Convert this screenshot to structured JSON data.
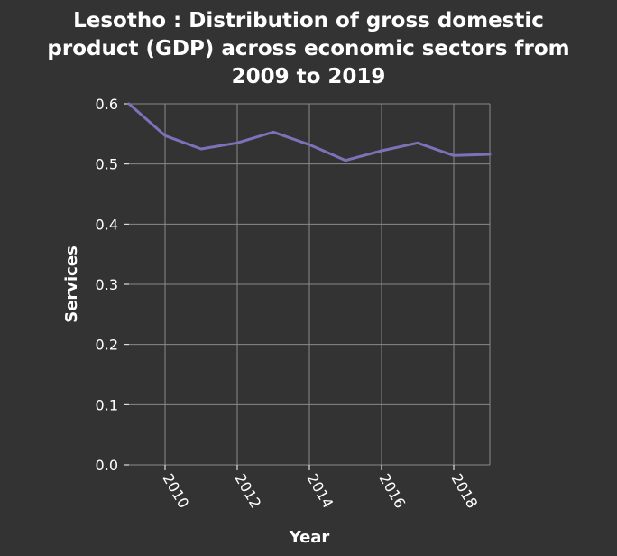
{
  "chart_data": {
    "type": "line",
    "title_lines": [
      "Lesotho : Distribution of gross domestic",
      "product (GDP) across economic sectors from",
      "2009 to 2019"
    ],
    "xlabel": "Year",
    "ylabel": "Services",
    "xlim": [
      2009,
      2019
    ],
    "ylim": [
      0.0,
      0.6
    ],
    "x_ticks": [
      2010,
      2012,
      2014,
      2016,
      2018
    ],
    "y_ticks": [
      0.0,
      0.1,
      0.2,
      0.3,
      0.4,
      0.5,
      0.6
    ],
    "y_tick_labels": [
      "0.0",
      "0.1",
      "0.2",
      "0.3",
      "0.4",
      "0.5",
      "0.6"
    ],
    "grid": true,
    "series": [
      {
        "color": "#7b72b8",
        "x": [
          2009,
          2010,
          2011,
          2012,
          2013,
          2014,
          2015,
          2016,
          2017,
          2018,
          2019
        ],
        "values": [
          0.6,
          0.547,
          0.525,
          0.535,
          0.553,
          0.532,
          0.506,
          0.522,
          0.535,
          0.514,
          0.516
        ]
      }
    ]
  }
}
